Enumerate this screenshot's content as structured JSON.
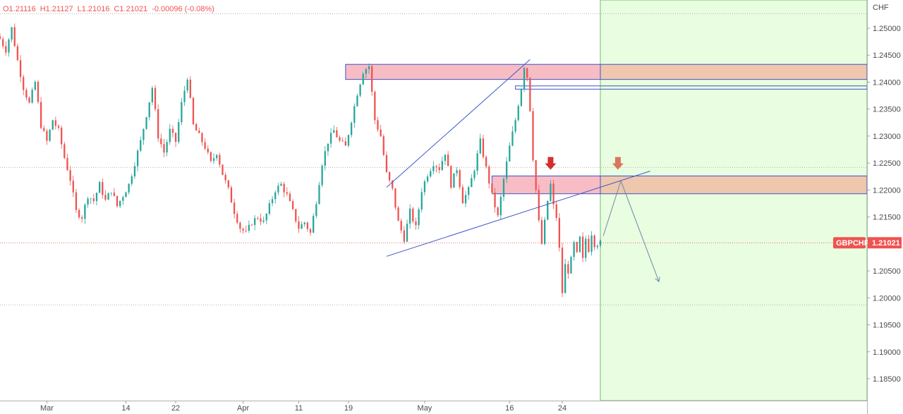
{
  "legend": {
    "open": "O1.21116",
    "high": "H1.21127",
    "low": "L1.21016",
    "close": "C1.21021",
    "change": "-0.00096 (-0.08%)"
  },
  "colors": {
    "up": "#26a69a",
    "down": "#ef5350",
    "zone_pink": "#f8bcc4",
    "zone_peach": "#eec7ad",
    "forecast_bg": "#e9fde0",
    "trendline": "#3d55c8",
    "arrow_red": "#d32f2f",
    "arrow_orange": "#d9765f",
    "projection": "#6b8aa8"
  },
  "chart_data": {
    "type": "candlestick",
    "symbol": "GBPCHF",
    "currency": "CHF",
    "last_price": "1.21021",
    "ylim": [
      1.1825,
      1.253
    ],
    "y_ticks": [
      "1.25000",
      "1.24500",
      "1.24000",
      "1.23500",
      "1.23000",
      "1.22500",
      "1.22000",
      "1.21500",
      "1.21000",
      "1.20500",
      "1.20000",
      "1.19500",
      "1.19000",
      "1.18500"
    ],
    "x_ticks": [
      {
        "label": "Mar",
        "bar": 16
      },
      {
        "label": "14",
        "bar": 43
      },
      {
        "label": "22",
        "bar": 60
      },
      {
        "label": "Apr",
        "bar": 83
      },
      {
        "label": "11",
        "bar": 102
      },
      {
        "label": "19",
        "bar": 119
      },
      {
        "label": "May",
        "bar": 145
      },
      {
        "label": "16",
        "bar": 174
      },
      {
        "label": "24",
        "bar": 192
      }
    ],
    "bars_total": 206,
    "close_path": [
      [
        0,
        1.248
      ],
      [
        2,
        1.246
      ],
      [
        4,
        1.25
      ],
      [
        6,
        1.244
      ],
      [
        8,
        1.239
      ],
      [
        10,
        1.236
      ],
      [
        12,
        1.24
      ],
      [
        14,
        1.232
      ],
      [
        16,
        1.229
      ],
      [
        18,
        1.233
      ],
      [
        20,
        1.231
      ],
      [
        22,
        1.226
      ],
      [
        24,
        1.222
      ],
      [
        26,
        1.216
      ],
      [
        28,
        1.215
      ],
      [
        30,
        1.219
      ],
      [
        32,
        1.218
      ],
      [
        34,
        1.221
      ],
      [
        36,
        1.218
      ],
      [
        38,
        1.22
      ],
      [
        40,
        1.217
      ],
      [
        42,
        1.219
      ],
      [
        44,
        1.221
      ],
      [
        46,
        1.225
      ],
      [
        48,
        1.229
      ],
      [
        50,
        1.234
      ],
      [
        52,
        1.239
      ],
      [
        54,
        1.23
      ],
      [
        56,
        1.227
      ],
      [
        58,
        1.231
      ],
      [
        60,
        1.229
      ],
      [
        62,
        1.236
      ],
      [
        64,
        1.241
      ],
      [
        66,
        1.232
      ],
      [
        68,
        1.23
      ],
      [
        70,
        1.228
      ],
      [
        72,
        1.225
      ],
      [
        74,
        1.227
      ],
      [
        76,
        1.223
      ],
      [
        78,
        1.22
      ],
      [
        80,
        1.216
      ],
      [
        82,
        1.213
      ],
      [
        84,
        1.212
      ],
      [
        86,
        1.214
      ],
      [
        88,
        1.215
      ],
      [
        90,
        1.214
      ],
      [
        92,
        1.217
      ],
      [
        94,
        1.22
      ],
      [
        96,
        1.221
      ],
      [
        98,
        1.219
      ],
      [
        100,
        1.216
      ],
      [
        102,
        1.213
      ],
      [
        104,
        1.214
      ],
      [
        106,
        1.212
      ],
      [
        108,
        1.218
      ],
      [
        110,
        1.225
      ],
      [
        112,
        1.229
      ],
      [
        114,
        1.231
      ],
      [
        116,
        1.229
      ],
      [
        118,
        1.228
      ],
      [
        120,
        1.233
      ],
      [
        122,
        1.238
      ],
      [
        124,
        1.242
      ],
      [
        126,
        1.243
      ],
      [
        128,
        1.233
      ],
      [
        130,
        1.23
      ],
      [
        132,
        1.223
      ],
      [
        134,
        1.22
      ],
      [
        136,
        1.214
      ],
      [
        138,
        1.211
      ],
      [
        140,
        1.216
      ],
      [
        142,
        1.213
      ],
      [
        144,
        1.22
      ],
      [
        146,
        1.223
      ],
      [
        148,
        1.225
      ],
      [
        150,
        1.224
      ],
      [
        152,
        1.227
      ],
      [
        154,
        1.221
      ],
      [
        156,
        1.224
      ],
      [
        158,
        1.218
      ],
      [
        160,
        1.22
      ],
      [
        162,
        1.224
      ],
      [
        164,
        1.229
      ],
      [
        166,
        1.224
      ],
      [
        168,
        1.219
      ],
      [
        170,
        1.215
      ],
      [
        172,
        1.222
      ],
      [
        174,
        1.228
      ],
      [
        176,
        1.233
      ],
      [
        178,
        1.239
      ],
      [
        179,
        1.243
      ],
      [
        180,
        1.241
      ],
      [
        181,
        1.235
      ],
      [
        182,
        1.226
      ],
      [
        183,
        1.22
      ],
      [
        184,
        1.214
      ],
      [
        185,
        1.21
      ],
      [
        186,
        1.214
      ],
      [
        187,
        1.218
      ],
      [
        188,
        1.221
      ],
      [
        189,
        1.217
      ],
      [
        190,
        1.215
      ],
      [
        191,
        1.209
      ],
      [
        192,
        1.201
      ],
      [
        193,
        1.206
      ],
      [
        194,
        1.205
      ],
      [
        195,
        1.207
      ],
      [
        196,
        1.21
      ],
      [
        197,
        1.208
      ],
      [
        198,
        1.211
      ],
      [
        199,
        1.207
      ],
      [
        200,
        1.211
      ],
      [
        201,
        1.209
      ],
      [
        202,
        1.212
      ],
      [
        203,
        1.21
      ],
      [
        205,
        1.2102
      ]
    ],
    "zones": [
      {
        "from_bar": 118,
        "to_bar": 206,
        "top": 1.2433,
        "bottom": 1.2405,
        "extend": true
      },
      {
        "from_bar": 176,
        "to_bar": 206,
        "top": 1.2393,
        "bottom": 1.2387,
        "extend": true,
        "style": "outline"
      },
      {
        "from_bar": 168,
        "to_bar": 206,
        "top": 1.2226,
        "bottom": 1.2193,
        "extend": true
      }
    ],
    "trendlines": [
      {
        "from": [
          132,
          1.2205
        ],
        "to": [
          181,
          1.2442
        ]
      },
      {
        "from": [
          132,
          1.2077
        ],
        "to": [
          222,
          1.2235
        ]
      }
    ],
    "arrows": [
      {
        "bar": 188,
        "price": 1.2235,
        "color": "red"
      },
      {
        "bar": 211,
        "price": 1.2235,
        "color": "orange"
      }
    ],
    "projection": [
      [
        206,
        1.2115
      ],
      [
        212,
        1.2217
      ],
      [
        225,
        1.203
      ]
    ],
    "dotted_levels": [
      1.2527,
      1.2242,
      1.2102,
      1.1987
    ]
  }
}
